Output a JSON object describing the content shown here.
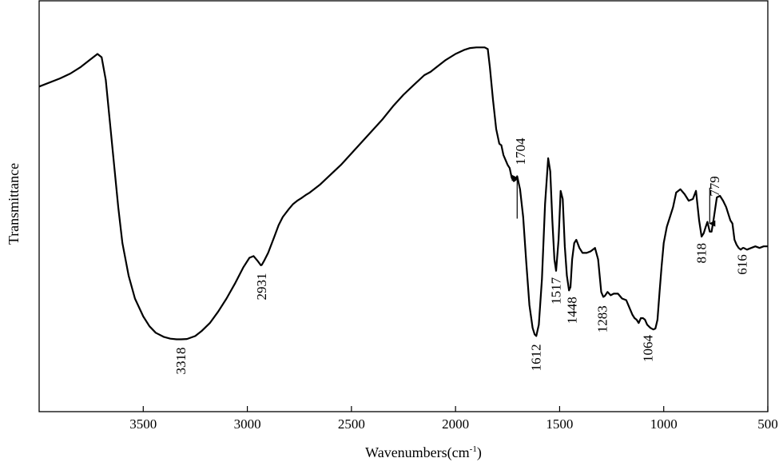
{
  "chart_data": {
    "type": "line",
    "title": "",
    "xlabel_prefix": "Wavenumbers(cm",
    "xlabel_sup": "-1",
    "xlabel_suffix": ")",
    "ylabel": "Transmittance",
    "xlim": [
      4000,
      500
    ],
    "ylim": [
      0,
      100
    ],
    "x_reversed": true,
    "grid": false,
    "y_tick_labels_shown": false,
    "x_ticks": [
      3500,
      3000,
      2500,
      2000,
      1500,
      1000,
      500
    ],
    "series": [
      {
        "color": "#000000",
        "x": [
          4000,
          3900,
          3850,
          3800,
          3760,
          3720,
          3700,
          3680,
          3660,
          3640,
          3620,
          3600,
          3570,
          3540,
          3500,
          3470,
          3440,
          3400,
          3370,
          3340,
          3318,
          3290,
          3250,
          3220,
          3180,
          3140,
          3100,
          3060,
          3020,
          2990,
          2970,
          2950,
          2935,
          2931,
          2920,
          2900,
          2870,
          2850,
          2830,
          2800,
          2780,
          2760,
          2740,
          2720,
          2700,
          2650,
          2600,
          2550,
          2500,
          2450,
          2400,
          2350,
          2300,
          2250,
          2200,
          2150,
          2120,
          2100,
          2050,
          2000,
          1960,
          1930,
          1900,
          1880,
          1860,
          1845,
          1835,
          1820,
          1805,
          1790,
          1780,
          1770,
          1760,
          1750,
          1740,
          1730,
          1720,
          1710,
          1704,
          1690,
          1675,
          1660,
          1645,
          1630,
          1620,
          1612,
          1600,
          1585,
          1570,
          1555,
          1545,
          1535,
          1525,
          1517,
          1505,
          1495,
          1485,
          1475,
          1465,
          1455,
          1448,
          1440,
          1430,
          1420,
          1405,
          1390,
          1370,
          1350,
          1330,
          1315,
          1300,
          1290,
          1283,
          1270,
          1255,
          1240,
          1220,
          1200,
          1180,
          1160,
          1150,
          1140,
          1130,
          1120,
          1110,
          1100,
          1090,
          1080,
          1064,
          1050,
          1040,
          1030,
          1020,
          1010,
          1000,
          985,
          970,
          955,
          940,
          920,
          900,
          880,
          860,
          845,
          830,
          818,
          808,
          798,
          790,
          779,
          770,
          760,
          745,
          730,
          715,
          700,
          690,
          680,
          670,
          660,
          650,
          640,
          630,
          620,
          616,
          600,
          580,
          560,
          540,
          520,
          500
        ],
        "y": [
          84,
          86.5,
          88,
          90,
          92,
          94,
          93,
          86,
          73,
          60,
          47,
          36,
          26,
          19,
          13.5,
          10.5,
          8.5,
          7.2,
          6.7,
          6.5,
          6.5,
          6.6,
          7.5,
          9,
          11.5,
          15,
          19,
          23.5,
          28.5,
          31.5,
          32,
          30.5,
          29.2,
          29.3,
          30.5,
          33,
          38,
          41.5,
          44,
          46.5,
          48,
          49,
          49.8,
          50.7,
          51.5,
          54,
          57,
          60,
          63.5,
          67,
          70.5,
          74,
          78,
          81.5,
          84.5,
          87.5,
          88.5,
          89.5,
          92,
          94,
          95.2,
          95.8,
          96,
          96,
          96,
          95.5,
          90,
          80,
          71,
          66.5,
          66,
          63,
          61.5,
          60,
          59,
          56,
          55,
          55.5,
          56.5,
          52.5,
          44,
          30,
          17,
          10,
          8,
          7.5,
          11,
          25,
          48,
          62,
          58,
          43,
          31,
          27.5,
          37,
          52,
          49.5,
          35,
          26,
          21.5,
          22.5,
          31,
          36,
          37,
          34.5,
          33,
          33,
          33.5,
          34.5,
          31,
          21,
          19.5,
          19.8,
          21,
          20,
          20.5,
          20.5,
          19,
          18.5,
          15.5,
          14,
          13,
          12.5,
          11.5,
          13,
          13,
          12.5,
          11,
          10,
          9.5,
          9.8,
          12.5,
          21,
          29,
          36,
          41,
          44,
          47,
          51.5,
          52.5,
          51,
          49,
          49.5,
          52,
          43,
          38,
          39,
          41,
          42.5,
          39.5,
          39.5,
          43.5,
          50,
          50.5,
          49,
          47,
          45,
          43,
          42,
          37,
          35.5,
          34.5,
          34,
          34.5,
          34.5,
          34,
          34.5,
          35,
          34.5,
          35,
          35
        ]
      }
    ],
    "annotations": [
      {
        "text": "3318",
        "x": 3318,
        "y": 6.5,
        "pos": "below",
        "dx": 0,
        "dy": 10
      },
      {
        "text": "2931",
        "x": 2931,
        "y": 29.3,
        "pos": "below",
        "dx": 0,
        "dy": 10
      },
      {
        "text": "1704",
        "x": 1704,
        "y": 56.5,
        "pos": "above",
        "dx": 4,
        "dy": -14
      },
      {
        "text": "1612",
        "x": 1612,
        "y": 7.5,
        "pos": "below",
        "dx": 0,
        "dy": 10
      },
      {
        "text": "1517",
        "x": 1517,
        "y": 27.5,
        "pos": "below",
        "dx": 0,
        "dy": 8
      },
      {
        "text": "1448",
        "x": 1448,
        "y": 21.5,
        "pos": "below",
        "dx": 2,
        "dy": 8
      },
      {
        "text": "1283",
        "x": 1283,
        "y": 19.8,
        "pos": "below",
        "dx": -3,
        "dy": 12
      },
      {
        "text": "1064",
        "x": 1064,
        "y": 9.8,
        "pos": "below",
        "dx": -3,
        "dy": 8
      },
      {
        "text": "818",
        "x": 818,
        "y": 38,
        "pos": "below",
        "dx": 0,
        "dy": 8
      },
      {
        "text": "779",
        "x": 779,
        "y": 41,
        "pos": "above",
        "dx": 6,
        "dy": -38
      },
      {
        "text": "616",
        "x": 616,
        "y": 34,
        "pos": "below",
        "dx": -2,
        "dy": 6
      }
    ],
    "arrows": [
      {
        "x": 1704,
        "y_from": 43.5,
        "y_to": 56
      },
      {
        "x": 779,
        "y_from": 53,
        "y_to": 42
      }
    ]
  }
}
